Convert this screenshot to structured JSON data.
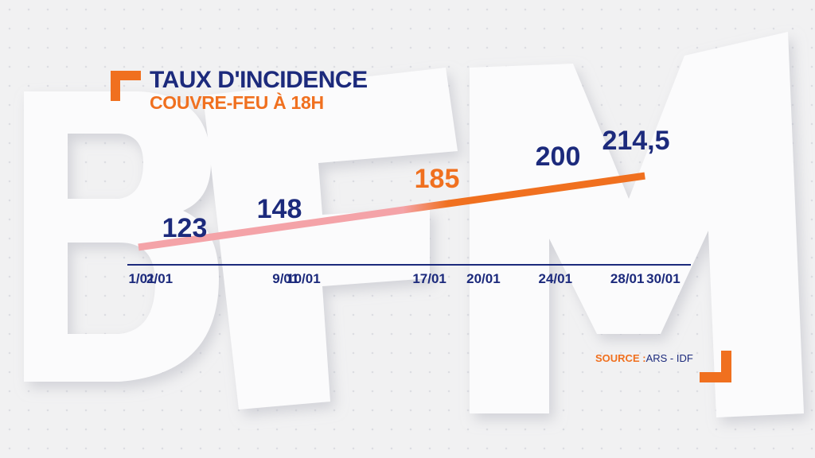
{
  "header": {
    "title": "TAUX D'INCIDENCE",
    "subtitle": "COUVRE-FEU À 18H"
  },
  "source": {
    "label": "SOURCE :",
    "value": "ARS - IDF"
  },
  "colors": {
    "navy": "#1c2a7c",
    "orange": "#f0701f",
    "pink": "#f4a3a8",
    "background": "#f1f1f2"
  },
  "chart_data": {
    "type": "line",
    "title": "TAUX D'INCIDENCE",
    "subtitle": "COUVRE-FEU À 18H",
    "xlabel": "",
    "ylabel": "",
    "x_ticks": [
      "1/01",
      "2/01",
      "9/01",
      "10/01",
      "17/01",
      "20/01",
      "24/01",
      "28/01",
      "30/01"
    ],
    "points": [
      {
        "x": "1/01",
        "y": null,
        "label": ""
      },
      {
        "x": "2/01",
        "y": 123,
        "label": "123"
      },
      {
        "x": "10/01",
        "y": 148,
        "label": "148"
      },
      {
        "x": "17/01",
        "y": 185,
        "label": "185"
      },
      {
        "x": "24/01",
        "y": 200,
        "label": "200"
      },
      {
        "x": "28/01",
        "y": 214.5,
        "label": "214,5"
      }
    ],
    "curfew_from": "17/01",
    "ylim": [
      100,
      230
    ],
    "grid": false,
    "legend": "none"
  }
}
